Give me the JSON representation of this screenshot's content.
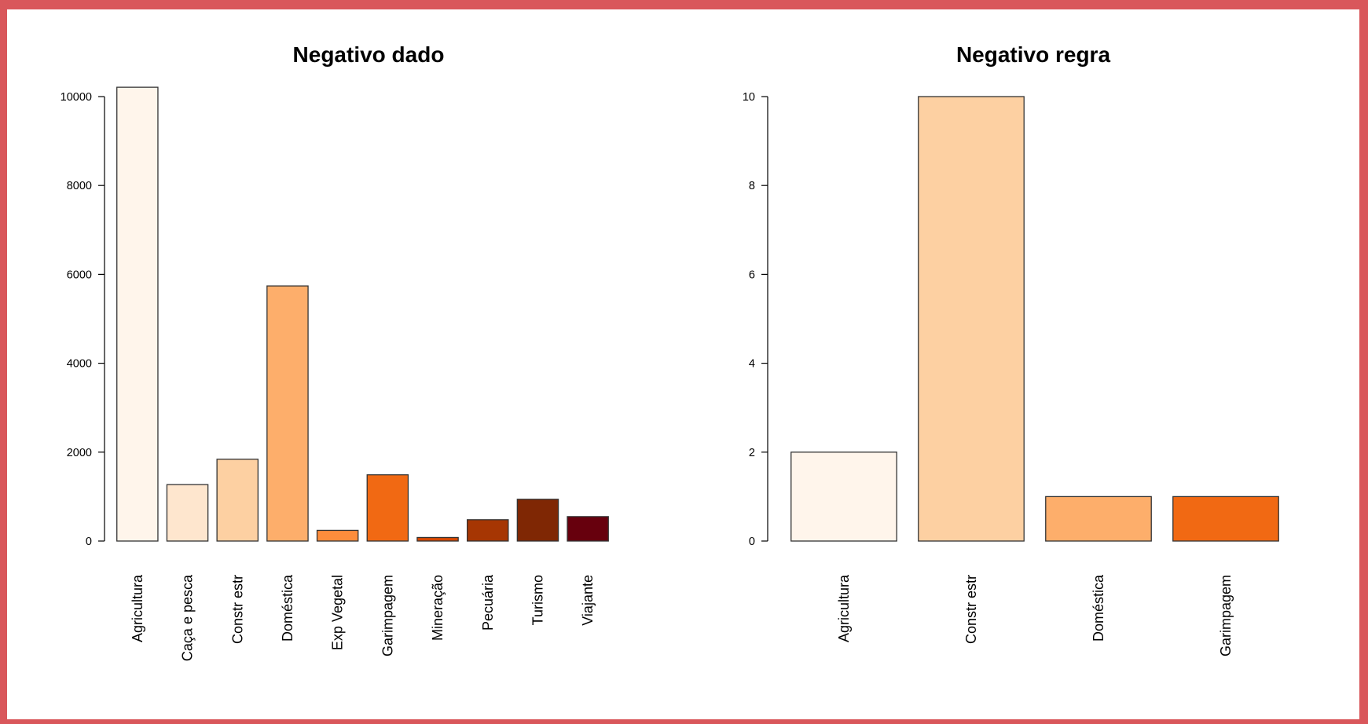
{
  "chart_data": [
    {
      "type": "bar",
      "title": "Negativo dado",
      "categories": [
        "Agricultura",
        "Caça e pesca",
        "Constr estr",
        "Doméstica",
        "Exp Vegetal",
        "Garimpagem",
        "Mineração",
        "Pecuária",
        "Turismo",
        "Viajante"
      ],
      "values": [
        10210,
        1270,
        1840,
        5740,
        240,
        1490,
        80,
        480,
        940,
        550
      ],
      "colors": [
        "#fff5eb",
        "#fee6ce",
        "#fdd0a2",
        "#fdae6b",
        "#fd8d3c",
        "#f16913",
        "#d94801",
        "#a63603",
        "#7f2704",
        "#67000d"
      ],
      "yticks": [
        0,
        2000,
        4000,
        6000,
        8000,
        10000
      ],
      "ylim": [
        0,
        10000
      ],
      "xlabel": "",
      "ylabel": ""
    },
    {
      "type": "bar",
      "title": "Negativo regra",
      "categories": [
        "Agricultura",
        "Constr estr",
        "Doméstica",
        "Garimpagem"
      ],
      "values": [
        2,
        10,
        1,
        1
      ],
      "colors": [
        "#fff5eb",
        "#fdd0a2",
        "#fdae6b",
        "#f16913"
      ],
      "yticks": [
        0,
        2,
        4,
        6,
        8,
        10
      ],
      "ylim": [
        0,
        10
      ],
      "xlabel": "",
      "ylabel": ""
    }
  ]
}
